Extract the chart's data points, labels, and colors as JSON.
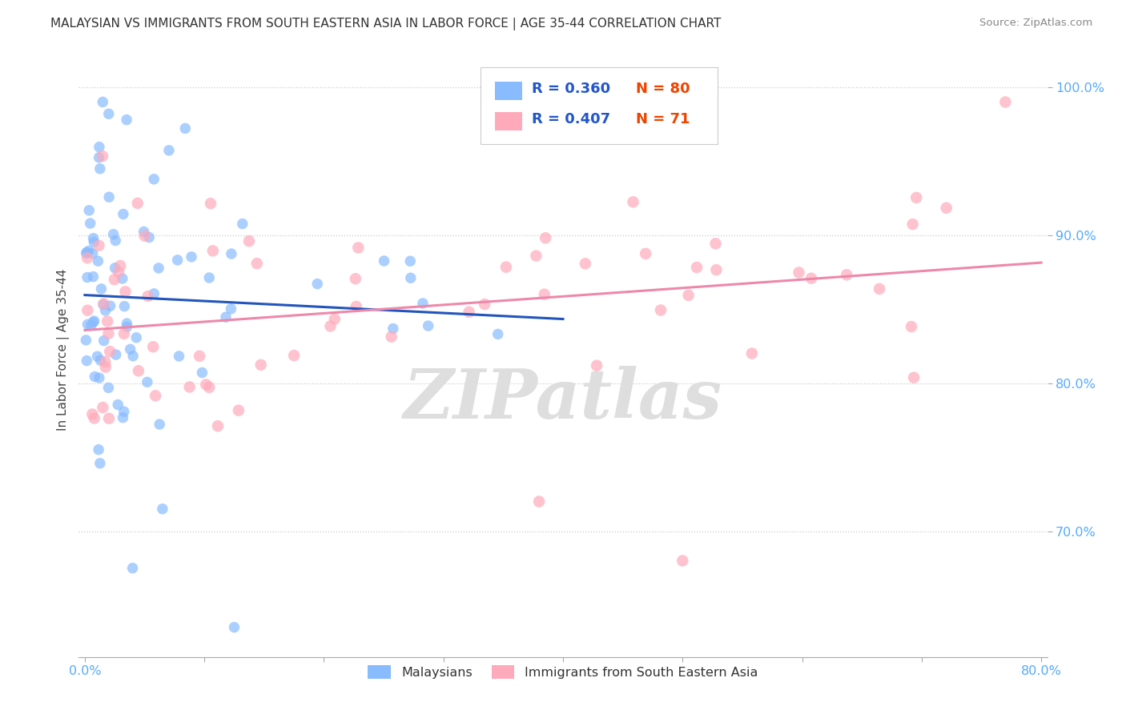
{
  "title": "MALAYSIAN VS IMMIGRANTS FROM SOUTH EASTERN ASIA IN LABOR FORCE | AGE 35-44 CORRELATION CHART",
  "source": "Source: ZipAtlas.com",
  "ylabel": "In Labor Force | Age 35-44",
  "xlim": [
    -0.005,
    0.805
  ],
  "ylim": [
    0.615,
    1.03
  ],
  "xtick_vals": [
    0.0,
    0.1,
    0.2,
    0.3,
    0.4,
    0.5,
    0.6,
    0.7,
    0.8
  ],
  "xtick_labels_sparse": {
    "0": "0.0%",
    "8": "80.0%"
  },
  "ytick_vals": [
    0.7,
    0.8,
    0.9,
    1.0
  ],
  "ytick_labels": [
    "70.0%",
    "80.0%",
    "90.0%",
    "100.0%"
  ],
  "blue_color": "#88bbff",
  "pink_color": "#ffaabb",
  "trendline_blue_color": "#2255bb",
  "trendline_pink_color": "#ee88aa",
  "tick_color": "#55aaff",
  "background_color": "#ffffff",
  "grid_color": "#cccccc",
  "watermark_color": "#e8e8e8"
}
